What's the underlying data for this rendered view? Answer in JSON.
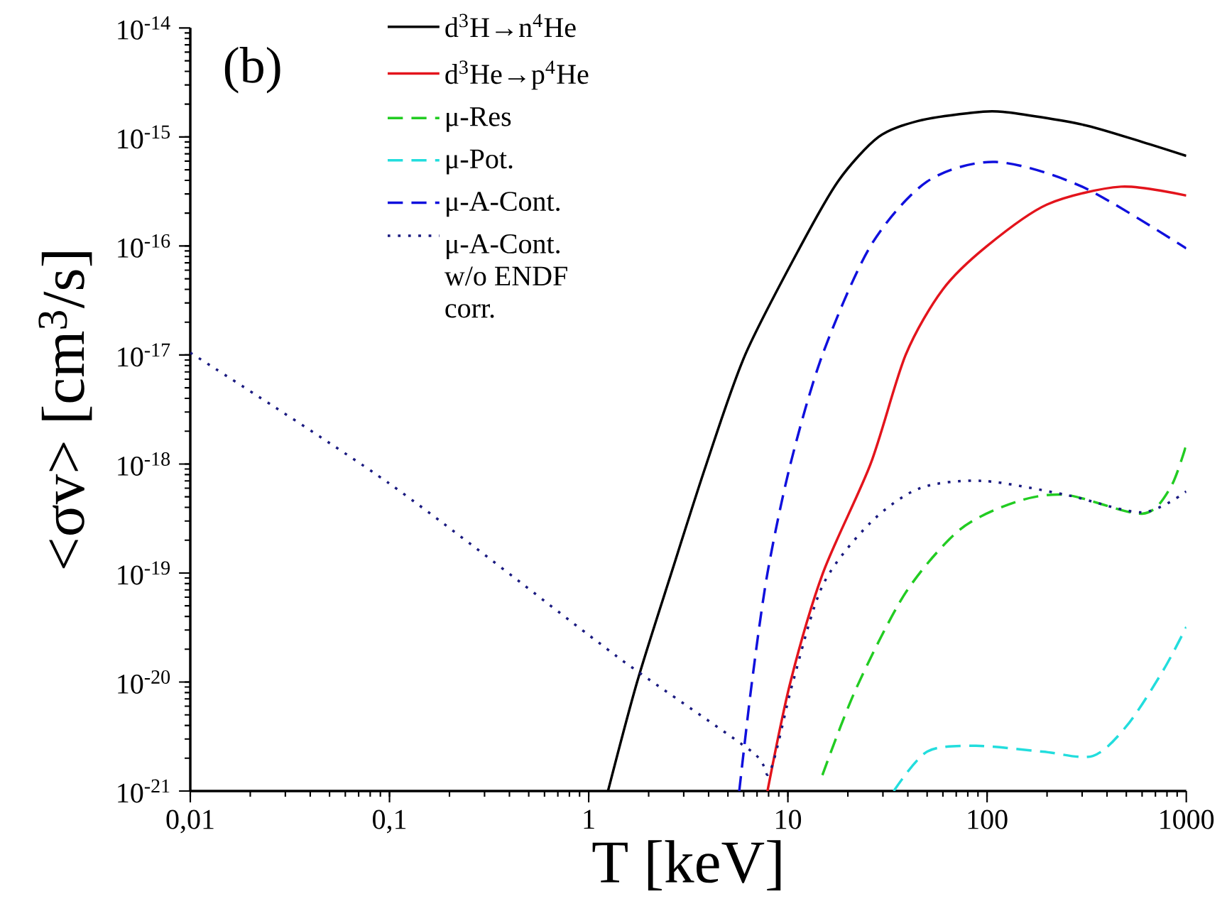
{
  "chart_data": {
    "type": "line",
    "xlabel": "T [keV]",
    "ylabel": "<σv> [cm$^{3}$/s]",
    "annotations": [
      "(b)"
    ],
    "log": "xy",
    "legend": "top left",
    "grid": false,
    "xlim": [
      0.01,
      1000
    ],
    "ylim": [
      1e-21,
      1e-14
    ],
    "xticks": [
      {
        "value": 0.01,
        "label": "0,01"
      },
      {
        "value": 0.1,
        "label": "0,1"
      },
      1,
      10,
      100,
      1000
    ],
    "yticks": [
      {
        "value": 1e-21,
        "label": "10$^{-21}$"
      },
      {
        "value": 1e-20,
        "label": "10$^{-20}$"
      },
      {
        "value": 1e-19,
        "label": "10$^{-19}$"
      },
      {
        "value": 1e-18,
        "label": "10$^{-18}$"
      },
      {
        "value": 1e-17,
        "label": "10$^{-17}$"
      },
      {
        "value": 1e-16,
        "label": "10$^{-16}$"
      },
      {
        "value": 1e-15,
        "label": "10$^{-15}$"
      },
      {
        "value": 1e-14,
        "label": "10$^{-14}$"
      }
    ],
    "series": [
      {
        "name": "d$^{3}$H→n$^{4}$He",
        "color": "#000000",
        "line_style": "solid",
        "x": [
          1.25,
          1.75,
          2.6,
          3.9,
          6.1,
          11.6,
          18,
          28.5,
          45,
          80,
          120,
          300,
          600,
          1000
        ],
        "values": [
          1e-21,
          1e-20,
          1e-19,
          1e-18,
          1e-17,
          1e-16,
          4e-16,
          1e-15,
          1.4e-15,
          1.65e-15,
          1.7e-15,
          1.3e-15,
          9e-16,
          6.7e-16
        ]
      },
      {
        "name": "d$^{3}$He→p$^{4}$He",
        "color": "#e3141c",
        "line_style": "solid",
        "x": [
          7.9,
          10.3,
          15,
          26,
          39,
          60,
          100,
          200,
          470,
          1000
        ],
        "values": [
          1e-21,
          1e-20,
          1e-19,
          1e-18,
          1e-17,
          4e-17,
          1e-16,
          2.4e-16,
          3.5e-16,
          2.9e-16
        ]
      },
      {
        "name": "μ-Res",
        "color": "#22cc22",
        "line_style": "dashed",
        "x": [
          14.9,
          22,
          39,
          73,
          140,
          250,
          600,
          830,
          1000
        ],
        "values": [
          1.4e-21,
          8.7e-21,
          6.6e-20,
          2.5e-19,
          4.5e-19,
          5.2e-19,
          3.5e-19,
          6e-19,
          1.5e-18
        ]
      },
      {
        "name": "μ-Pot.",
        "color": "#22dddd",
        "line_style": "dashed",
        "x": [
          34,
          50,
          88,
          190,
          340,
          510,
          770,
          1000
        ],
        "values": [
          1e-21,
          2.3e-21,
          2.6e-21,
          2.3e-21,
          2.1e-21,
          4.1e-21,
          1.3e-20,
          3.2e-20
        ]
      },
      {
        "name": "μ-A-Cont.",
        "color": "#1010dd",
        "line_style": "dashed",
        "x": [
          5.7,
          6.6,
          7.9,
          10.3,
          14.9,
          26,
          50,
          110,
          300,
          1000
        ],
        "values": [
          1e-21,
          1e-20,
          1e-19,
          1e-18,
          1e-17,
          1e-16,
          3.9e-16,
          5.9e-16,
          3.5e-16,
          9.5e-17
        ]
      },
      {
        "name": "μ-A-Cont. w/o ENDF corr.",
        "color": "#1a1a80",
        "line_style": "dotted",
        "x": [
          0.01,
          0.1,
          1,
          1.75,
          6.6,
          8.1,
          10.6,
          15,
          26,
          46,
          95,
          250,
          600,
          1000
        ],
        "values": [
          1.05e-17,
          6.6e-19,
          2.7e-20,
          1.26e-20,
          2.3e-21,
          1.5e-21,
          1e-20,
          7.8e-20,
          2.9e-19,
          6e-19,
          7e-19,
          5.2e-19,
          3.6e-19,
          5.6e-19
        ]
      }
    ]
  }
}
